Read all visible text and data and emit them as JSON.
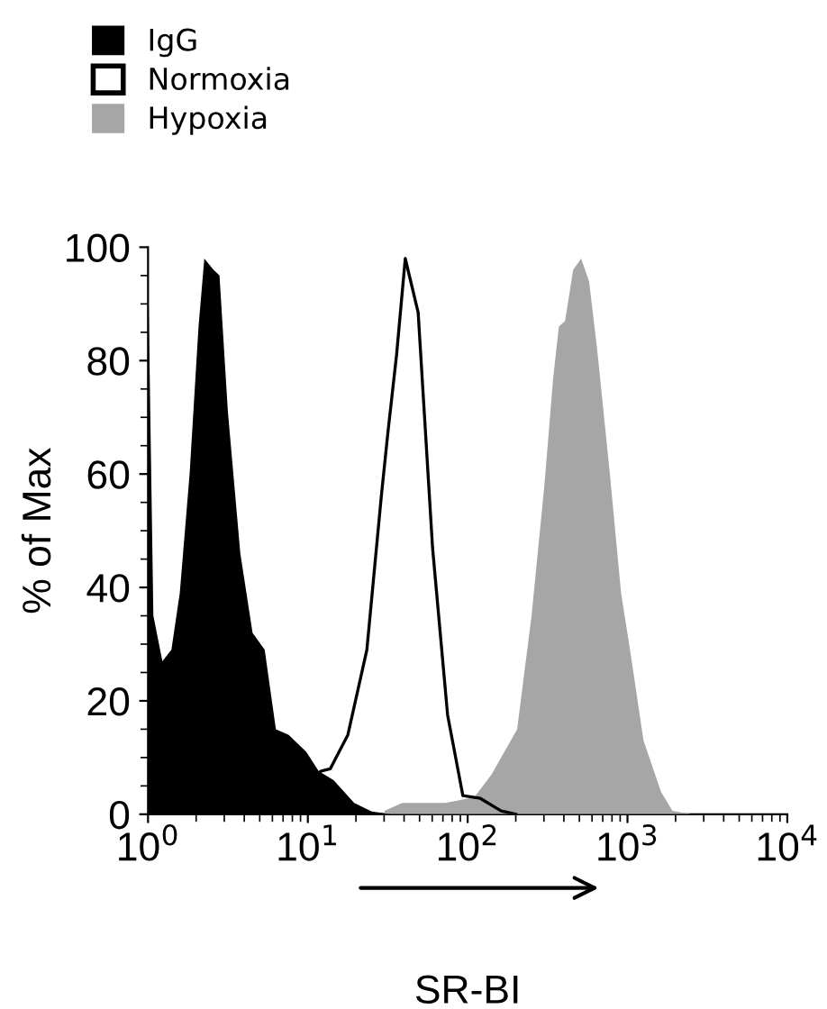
{
  "chart_data": {
    "type": "area",
    "xlabel": "SR-BI",
    "ylabel": "% of Max",
    "log": "x",
    "xlim": [
      1,
      10000
    ],
    "xticks": [
      {
        "value": 1,
        "label": "10$^{0}$"
      },
      {
        "value": 10,
        "label": "10$^{1}$"
      },
      {
        "value": 100,
        "label": "10$^{2}$"
      },
      {
        "value": 1000,
        "label": "10$^{3}$"
      },
      {
        "value": 10000,
        "label": "10$^{4}$"
      }
    ],
    "ylim": [
      0,
      100
    ],
    "yticks": [
      0,
      20,
      40,
      60,
      80,
      100
    ],
    "legend": "top left",
    "grid": false,
    "series": [
      {
        "name": "IgG",
        "color": "#000000",
        "x": [
          1,
          1.08,
          1.23,
          1.4,
          1.58,
          1.82,
          2.07,
          2.25,
          2.57,
          2.8,
          3.16,
          3.78,
          4.51,
          5.37,
          6.31,
          7.59,
          9.77,
          11.7,
          14.5,
          19.5,
          25.1,
          33.1
        ],
        "values": [
          97,
          35,
          27,
          29,
          39,
          60,
          86,
          98,
          96,
          95,
          71,
          46,
          32,
          29,
          15,
          14,
          11,
          7.6,
          6,
          2,
          0.5,
          0
        ]
      },
      {
        "name": "Normoxia",
        "type": "line",
        "color": "#000000",
        "x": [
          10,
          12,
          13.8,
          17.8,
          23.4,
          28.8,
          31.6,
          35.9,
          40.7,
          49,
          60.3,
          74.9,
          93.3,
          120,
          162,
          200
        ],
        "values": [
          0,
          7.6,
          8,
          14,
          29,
          56,
          67,
          81,
          98,
          88.5,
          47,
          17.5,
          3.3,
          2.8,
          0.6,
          0
        ]
      },
      {
        "name": "Hypoxia",
        "color": "#a6a6a6",
        "x": [
          30.2,
          38.9,
          72.4,
          110,
          141,
          204,
          251,
          302,
          343,
          372,
          407,
          457,
          513,
          575,
          646,
          776,
          912,
          1050,
          1260,
          1620,
          1910,
          2510
        ],
        "values": [
          0.6,
          2,
          2,
          3,
          7,
          15,
          35,
          58,
          77,
          86,
          87,
          96,
          98,
          94,
          82,
          60,
          39,
          28,
          13,
          4,
          0.6,
          0
        ]
      }
    ]
  }
}
